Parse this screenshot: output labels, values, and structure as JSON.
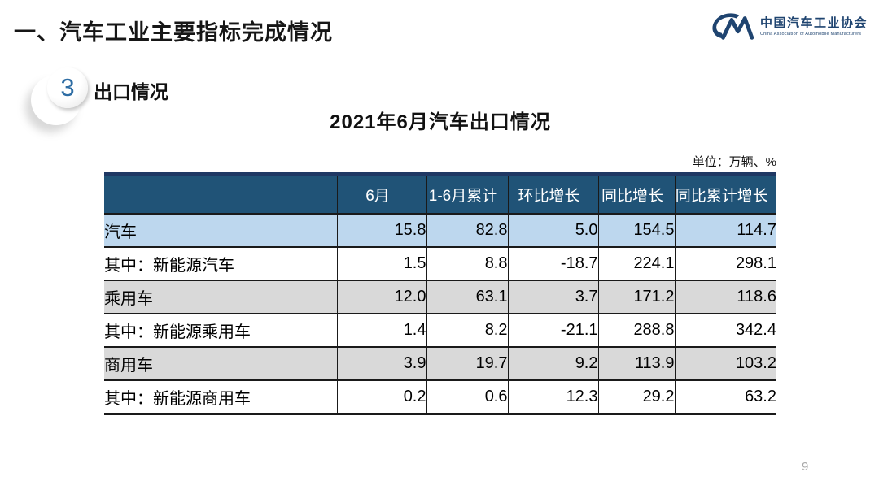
{
  "page": {
    "main_title": "一、汽车工业主要指标完成情况",
    "section_number": "3",
    "section_title": "出口情况",
    "page_number": "9"
  },
  "logo": {
    "name": "中国汽车工业协会",
    "subtitle": "China Association of Automobile Manufacturers"
  },
  "table": {
    "title": "2021年6月汽车出口情况",
    "unit_label": "单位：万辆、%",
    "columns": [
      "",
      "6月",
      "1-6月累计",
      "环比增长",
      "同比增长",
      "同比累计增长"
    ],
    "rows": [
      {
        "label": "汽车",
        "indent": 0,
        "values": [
          "15.8",
          "82.8",
          "5.0",
          "154.5",
          "114.7"
        ]
      },
      {
        "label": "其中：新能源汽车",
        "indent": 2,
        "values": [
          "1.5",
          "8.8",
          "-18.7",
          "224.1",
          "298.1"
        ]
      },
      {
        "label": "乘用车",
        "indent": 1,
        "values": [
          "12.0",
          "63.1",
          "3.7",
          "171.2",
          "118.6"
        ]
      },
      {
        "label": "其中：新能源乘用车",
        "indent": 3,
        "values": [
          "1.4",
          "8.2",
          "-21.1",
          "288.8",
          "342.4"
        ]
      },
      {
        "label": "商用车",
        "indent": 1,
        "values": [
          "3.9",
          "19.7",
          "9.2",
          "113.9",
          "103.2"
        ]
      },
      {
        "label": "其中：新能源商用车",
        "indent": 3,
        "values": [
          "0.2",
          "0.6",
          "12.3",
          "29.2",
          "63.2"
        ]
      }
    ]
  },
  "colors": {
    "header_bg": "#205377",
    "header_text": "#ffffff",
    "row_highlight_blue": "#BDD7EE",
    "row_gray": "#D9D9D9",
    "border_navy": "#1F3864",
    "logo_navy": "#1F4470",
    "badge_number_blue": "#2E6DA4"
  }
}
